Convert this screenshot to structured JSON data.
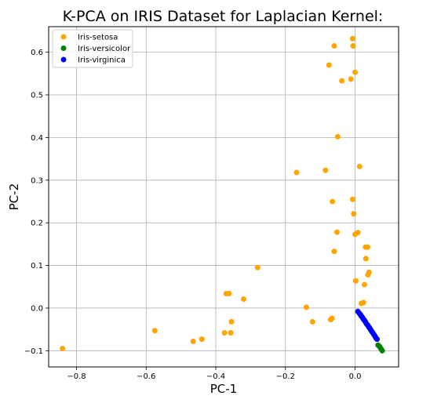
{
  "chart_data": {
    "type": "scatter",
    "title": "K-PCA on IRIS Dataset for Laplacian Kernel:",
    "xlabel": "PC-1",
    "ylabel": "PC-2",
    "xlim": [
      -0.88,
      0.125
    ],
    "ylim": [
      -0.138,
      0.66
    ],
    "xticks": [
      -0.8,
      -0.6,
      -0.4,
      -0.2,
      0.0
    ],
    "xtick_labels": [
      "−0.8",
      "−0.6",
      "−0.4",
      "−0.2",
      "0.0"
    ],
    "yticks": [
      -0.1,
      0.0,
      0.1,
      0.2,
      0.3,
      0.4,
      0.5,
      0.6
    ],
    "ytick_labels": [
      "−0.1",
      "0.0",
      "0.1",
      "0.2",
      "0.3",
      "0.4",
      "0.5",
      "0.6"
    ],
    "grid": true,
    "legend_position": "top-left",
    "series": [
      {
        "name": "Iris-setosa",
        "color": "#FFA500",
        "points": [
          [
            -0.84,
            -0.095
          ],
          [
            -0.575,
            -0.053
          ],
          [
            -0.465,
            -0.078
          ],
          [
            -0.44,
            -0.073
          ],
          [
            -0.375,
            -0.058
          ],
          [
            -0.357,
            -0.058
          ],
          [
            -0.355,
            -0.032
          ],
          [
            -0.37,
            0.034
          ],
          [
            -0.362,
            0.034
          ],
          [
            -0.32,
            0.021
          ],
          [
            -0.28,
            0.095
          ],
          [
            -0.168,
            0.318
          ],
          [
            -0.14,
            0.002
          ],
          [
            -0.122,
            -0.032
          ],
          [
            -0.085,
            0.323
          ],
          [
            -0.07,
            -0.027
          ],
          [
            -0.066,
            -0.024
          ],
          [
            -0.075,
            0.57
          ],
          [
            -0.06,
            0.615
          ],
          [
            -0.065,
            0.25
          ],
          [
            -0.06,
            0.133
          ],
          [
            -0.052,
            0.178
          ],
          [
            -0.05,
            0.402
          ],
          [
            -0.038,
            0.533
          ],
          [
            -0.012,
            0.537
          ],
          [
            -0.007,
            0.632
          ],
          [
            -0.006,
            0.615
          ],
          [
            0.0,
            0.553
          ],
          [
            -0.007,
            0.255
          ],
          [
            -0.004,
            0.221
          ],
          [
            0.0,
            0.173
          ],
          [
            0.008,
            0.177
          ],
          [
            0.013,
            0.332
          ],
          [
            0.002,
            0.064
          ],
          [
            0.018,
            0.011
          ],
          [
            0.024,
            0.013
          ],
          [
            0.027,
            0.055
          ],
          [
            0.03,
            0.143
          ],
          [
            0.036,
            0.143
          ],
          [
            0.031,
            0.116
          ],
          [
            0.037,
            0.078
          ],
          [
            0.04,
            0.084
          ]
        ]
      },
      {
        "name": "Iris-versicolor",
        "color": "#008000",
        "points": [
          [
            0.066,
            -0.087
          ],
          [
            0.07,
            -0.09
          ],
          [
            0.074,
            -0.095
          ],
          [
            0.078,
            -0.1
          ]
        ]
      },
      {
        "name": "Iris-virginica",
        "color": "#0000FF",
        "points": [
          [
            0.008,
            -0.008
          ],
          [
            0.012,
            -0.012
          ],
          [
            0.015,
            -0.015
          ],
          [
            0.018,
            -0.019
          ],
          [
            0.021,
            -0.022
          ],
          [
            0.024,
            -0.026
          ],
          [
            0.027,
            -0.029
          ],
          [
            0.03,
            -0.033
          ],
          [
            0.033,
            -0.037
          ],
          [
            0.036,
            -0.04
          ],
          [
            0.039,
            -0.044
          ],
          [
            0.042,
            -0.047
          ],
          [
            0.045,
            -0.051
          ],
          [
            0.048,
            -0.055
          ],
          [
            0.051,
            -0.058
          ],
          [
            0.054,
            -0.062
          ],
          [
            0.057,
            -0.066
          ],
          [
            0.06,
            -0.07
          ],
          [
            0.063,
            -0.073
          ]
        ]
      }
    ]
  }
}
